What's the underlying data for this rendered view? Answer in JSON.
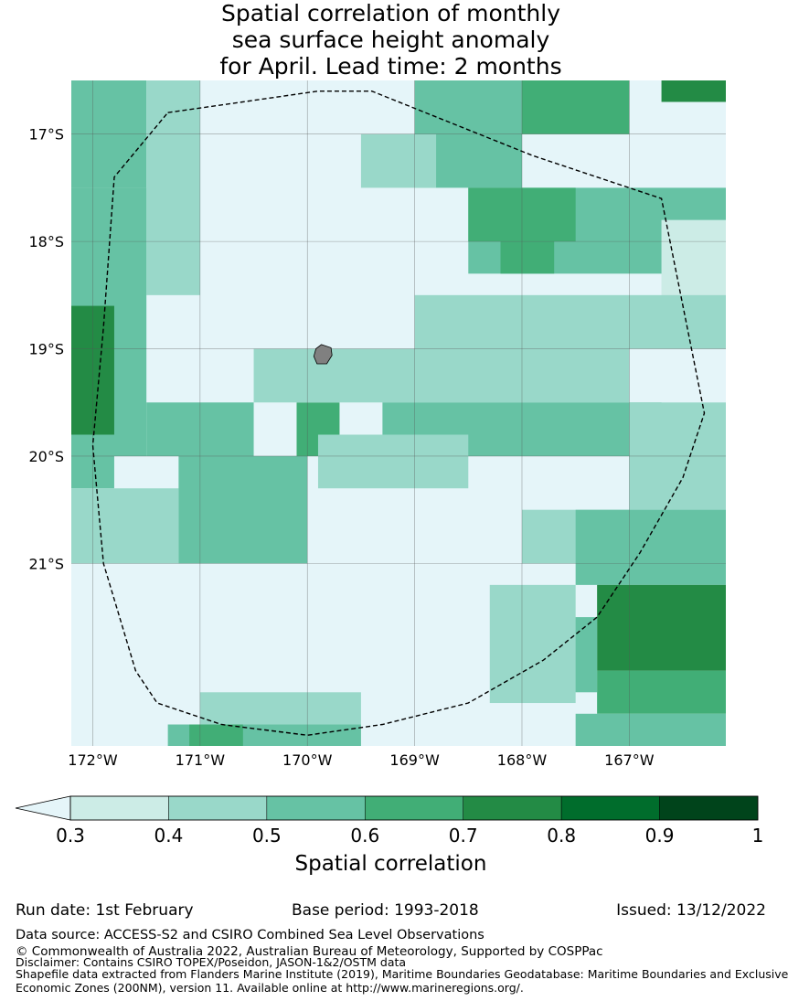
{
  "title": {
    "line1": "Spatial correlation of monthly",
    "line2": "sea surface height anomaly",
    "line3": "for April. Lead time: 2 months"
  },
  "map": {
    "lon_range": [
      -172.2,
      -166.1
    ],
    "lat_range": [
      -22.7,
      -16.5
    ],
    "lat_ticks": [
      {
        "value": -17,
        "label": "17°S"
      },
      {
        "value": -18,
        "label": "18°S"
      },
      {
        "value": -19,
        "label": "19°S"
      },
      {
        "value": -20,
        "label": "20°S"
      },
      {
        "value": -21,
        "label": "21°S"
      }
    ],
    "lon_ticks": [
      {
        "value": -172,
        "label": "172°W"
      },
      {
        "value": -171,
        "label": "171°W"
      },
      {
        "value": -170,
        "label": "170°W"
      },
      {
        "value": -169,
        "label": "169°W"
      },
      {
        "value": -168,
        "label": "168°W"
      },
      {
        "value": -167,
        "label": "167°W"
      }
    ],
    "grid": "on",
    "background_color": "#e5f5f9",
    "island_color": "#808080",
    "eez_boundary_style": "dashed black",
    "cells": [
      {
        "lon": [
          -172.2,
          -172.0
        ],
        "lat": [
          -17.0,
          -16.5
        ],
        "level": 3
      },
      {
        "lon": [
          -172.2,
          -171.5
        ],
        "lat": [
          -17.5,
          -16.5
        ],
        "level": 2
      },
      {
        "lon": [
          -171.5,
          -171.0
        ],
        "lat": [
          -18.5,
          -16.5
        ],
        "level": 1
      },
      {
        "lon": [
          -172.2,
          -171.5
        ],
        "lat": [
          -20.0,
          -17.5
        ],
        "level": 2
      },
      {
        "lon": [
          -172.2,
          -171.8
        ],
        "lat": [
          -19.8,
          -18.6
        ],
        "level": 4
      },
      {
        "lon": [
          -172.2,
          -171.8
        ],
        "lat": [
          -20.3,
          -20.0
        ],
        "level": 2
      },
      {
        "lon": [
          -172.2,
          -171.2
        ],
        "lat": [
          -21.0,
          -20.3
        ],
        "level": 1
      },
      {
        "lon": [
          -171.5,
          -170.5
        ],
        "lat": [
          -20.0,
          -19.5
        ],
        "level": 2
      },
      {
        "lon": [
          -171.2,
          -170.0
        ],
        "lat": [
          -21.0,
          -20.0
        ],
        "level": 2
      },
      {
        "lon": [
          -170.1,
          -169.7
        ],
        "lat": [
          -20.0,
          -19.5
        ],
        "level": 3
      },
      {
        "lon": [
          -170.5,
          -167.0
        ],
        "lat": [
          -19.5,
          -19.0
        ],
        "level": 1
      },
      {
        "lon": [
          -169.3,
          -166.7
        ],
        "lat": [
          -20.0,
          -19.5
        ],
        "level": 2
      },
      {
        "lon": [
          -169.9,
          -168.5
        ],
        "lat": [
          -20.3,
          -19.8
        ],
        "level": 1
      },
      {
        "lon": [
          -167.0,
          -166.1
        ],
        "lat": [
          -20.5,
          -19.5
        ],
        "level": 1
      },
      {
        "lon": [
          -168.0,
          -166.1
        ],
        "lat": [
          -21.0,
          -20.5
        ],
        "level": 1
      },
      {
        "lon": [
          -167.5,
          -166.1
        ],
        "lat": [
          -21.2,
          -20.5
        ],
        "level": 2
      },
      {
        "lon": [
          -167.3,
          -166.1
        ],
        "lat": [
          -22.0,
          -21.2
        ],
        "level": 4
      },
      {
        "lon": [
          -168.0,
          -167.3
        ],
        "lat": [
          -22.2,
          -21.5
        ],
        "level": 2
      },
      {
        "lon": [
          -167.3,
          -166.1
        ],
        "lat": [
          -22.4,
          -22.0
        ],
        "level": 3
      },
      {
        "lon": [
          -168.3,
          -167.5
        ],
        "lat": [
          -22.3,
          -21.2
        ],
        "level": 1
      },
      {
        "lon": [
          -171.0,
          -169.5
        ],
        "lat": [
          -22.5,
          -22.2
        ],
        "level": 1
      },
      {
        "lon": [
          -171.3,
          -169.5
        ],
        "lat": [
          -22.7,
          -22.5
        ],
        "level": 2
      },
      {
        "lon": [
          -171.1,
          -170.6
        ],
        "lat": [
          -22.7,
          -22.5
        ],
        "level": 3
      },
      {
        "lon": [
          -167.5,
          -166.1
        ],
        "lat": [
          -22.7,
          -22.4
        ],
        "level": 2
      },
      {
        "lon": [
          -169.0,
          -168.0
        ],
        "lat": [
          -17.5,
          -16.5
        ],
        "level": 2
      },
      {
        "lon": [
          -168.0,
          -167.0
        ],
        "lat": [
          -17.0,
          -16.5
        ],
        "level": 3
      },
      {
        "lon": [
          -166.7,
          -166.1
        ],
        "lat": [
          -16.7,
          -16.5
        ],
        "level": 4
      },
      {
        "lon": [
          -168.5,
          -166.1
        ],
        "lat": [
          -18.3,
          -17.5
        ],
        "level": 2
      },
      {
        "lon": [
          -168.5,
          -167.5
        ],
        "lat": [
          -18.0,
          -17.5
        ],
        "level": 3
      },
      {
        "lon": [
          -168.2,
          -167.7
        ],
        "lat": [
          -18.3,
          -18.0
        ],
        "level": 3
      },
      {
        "lon": [
          -166.7,
          -166.1
        ],
        "lat": [
          -18.8,
          -17.8
        ],
        "level": 0
      },
      {
        "lon": [
          -169.0,
          -166.1
        ],
        "lat": [
          -19.0,
          -18.5
        ],
        "level": 1
      },
      {
        "lon": [
          -169.5,
          -168.8
        ],
        "lat": [
          -17.5,
          -17.0
        ],
        "level": 1
      }
    ],
    "eez_boundary": [
      [
        -171.3,
        -16.8
      ],
      [
        -169.9,
        -16.6
      ],
      [
        -169.4,
        -16.6
      ],
      [
        -168.9,
        -16.8
      ],
      [
        -167.9,
        -17.2
      ],
      [
        -167.3,
        -17.4
      ],
      [
        -166.7,
        -17.6
      ],
      [
        -166.3,
        -19.6
      ],
      [
        -166.5,
        -20.2
      ],
      [
        -166.9,
        -20.9
      ],
      [
        -167.3,
        -21.5
      ],
      [
        -167.8,
        -21.9
      ],
      [
        -168.5,
        -22.3
      ],
      [
        -169.3,
        -22.5
      ],
      [
        -170.0,
        -22.6
      ],
      [
        -170.8,
        -22.5
      ],
      [
        -171.4,
        -22.3
      ],
      [
        -171.6,
        -22.0
      ],
      [
        -171.9,
        -21.0
      ],
      [
        -172.0,
        -19.9
      ],
      [
        -171.9,
        -18.8
      ],
      [
        -171.8,
        -17.4
      ],
      [
        -171.3,
        -16.8
      ]
    ],
    "island": [
      [
        -169.87,
        -18.96
      ],
      [
        -169.78,
        -18.99
      ],
      [
        -169.77,
        -19.06
      ],
      [
        -169.82,
        -19.14
      ],
      [
        -169.91,
        -19.14
      ],
      [
        -169.94,
        -19.07
      ],
      [
        -169.92,
        -19.0
      ],
      [
        -169.87,
        -18.96
      ]
    ]
  },
  "colorbar": {
    "colors": [
      "#ccece6",
      "#99d8c9",
      "#66c2a4",
      "#41ae76",
      "#238b45",
      "#006d2c",
      "#00441b"
    ],
    "under_color": "#e5f5f9",
    "ticks": [
      "0.3",
      "0.4",
      "0.5",
      "0.6",
      "0.7",
      "0.8",
      "0.9",
      "1"
    ],
    "label": "Spatial correlation"
  },
  "info": {
    "run_date": "Run date: 1st February",
    "base_period": "Base period: 1993-2018",
    "issued": "Issued: 13/12/2022"
  },
  "footer": {
    "data_source": "Data source: ACCESS-S2 and CSIRO Combined Sea Level Observations",
    "copyright": "© Commonwealth of Australia 2022, Australian Bureau of Meteorology, Supported by COSPPac",
    "disclaimer": "Disclaimer: Contains CSIRO TOPEX/Poseidon, JASON-1&2/OSTM data",
    "shapefile_line1": "Shapefile data extracted from Flanders Marine Institute (2019), Maritime Boundaries Geodatabase: Maritime Boundaries and Exclusive",
    "shapefile_line2": "Economic Zones (200NM), version 11. Available online at http://www.marineregions.org/."
  }
}
